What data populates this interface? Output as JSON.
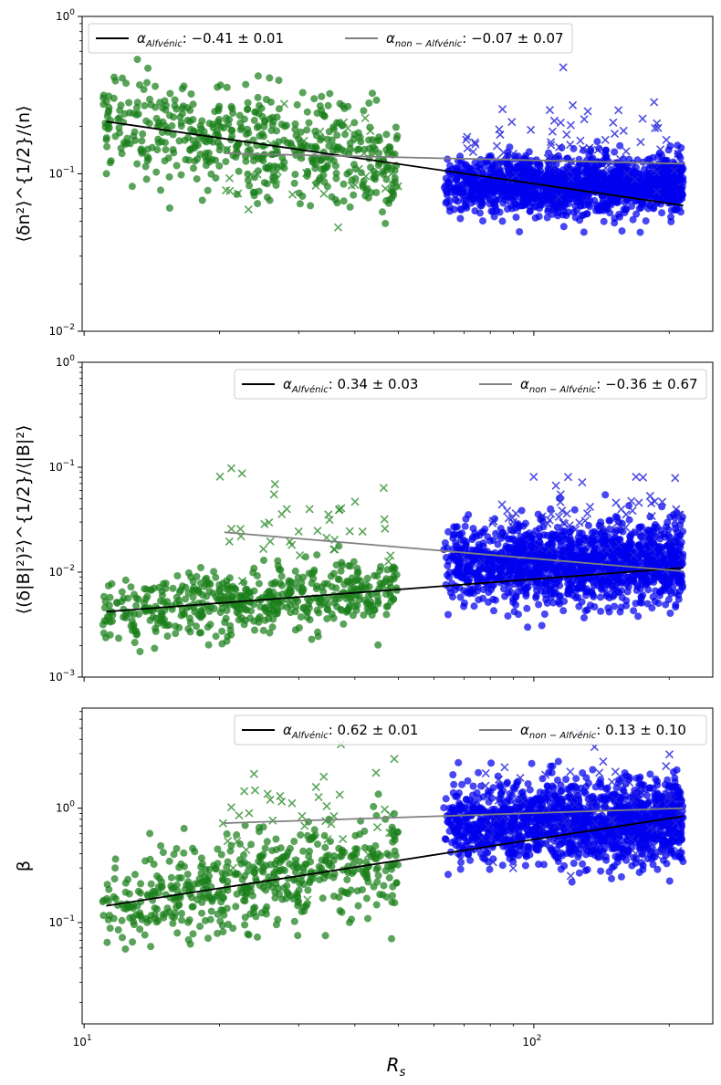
{
  "chart_data": [
    {
      "type": "scatter",
      "panel": "top",
      "ylabel": "⟨δn²⟩^{1/2}/⟨n⟩",
      "xscale": "log",
      "yscale": "log",
      "xlim": [
        9.9,
        250
      ],
      "ylim": [
        0.01,
        1
      ],
      "y_ticks": [
        {
          "value": 0.01,
          "base": "10",
          "exp": "−2"
        },
        {
          "value": 0.1,
          "base": "10",
          "exp": "−1"
        },
        {
          "value": 1,
          "base": "10",
          "exp": "0"
        }
      ],
      "legend_position": "upper-left",
      "fits": [
        {
          "name": "Alfvénic",
          "label_prefix": "α",
          "label_sub": "Alfvénic",
          "label_value": ": −0.41 ± 0.01",
          "slope": -0.41,
          "error": 0.01,
          "color": "#000000",
          "x_range": [
            11.2,
            215
          ],
          "y_at_start": 0.215,
          "y_at_end": 0.063
        },
        {
          "name": "non-Alfvénic",
          "label_prefix": "α",
          "label_sub": "non − Alfvénic",
          "label_value": ": −0.07 ± 0.07",
          "slope": -0.07,
          "error": 0.07,
          "color": "#808080",
          "x_range": [
            20.5,
            215
          ],
          "y_at_start": 0.135,
          "y_at_end": 0.116
        }
      ],
      "series": [
        {
          "name": "near-Sun Alfvénic (green circles)",
          "color": "#1a7f1a",
          "marker": "o",
          "x_range": [
            11,
            50
          ],
          "y_center": 0.2,
          "y_spread": 0.3,
          "count": 520,
          "seed": 11
        },
        {
          "name": "near-Sun non-Alfvénic (green crosses)",
          "color": "#2f8f2f",
          "marker": "x",
          "x_range": [
            20,
            50
          ],
          "y_center": 0.12,
          "y_spread": 0.3,
          "count": 40,
          "seed": 12
        },
        {
          "name": "far Alfvénic (blue circles)",
          "color": "#0000ee",
          "marker": "o",
          "x_range": [
            63,
            215
          ],
          "y_center": 0.085,
          "y_spread": 0.16,
          "count": 1500,
          "seed": 13
        },
        {
          "name": "far non-Alfvénic (blue crosses)",
          "color": "#2222dd",
          "marker": "x",
          "x_range": [
            70,
            215
          ],
          "y_center": 0.16,
          "y_spread": 0.3,
          "count": 70,
          "seed": 14
        }
      ]
    },
    {
      "type": "scatter",
      "panel": "middle",
      "ylabel": "⟨(δ|B|²)²⟩^{1/2}/⟨|B|²⟩",
      "xscale": "log",
      "yscale": "log",
      "xlim": [
        9.9,
        250
      ],
      "ylim": [
        0.001,
        1
      ],
      "y_ticks": [
        {
          "value": 0.001,
          "base": "10",
          "exp": "−3"
        },
        {
          "value": 0.01,
          "base": "10",
          "exp": "−2"
        },
        {
          "value": 0.1,
          "base": "10",
          "exp": "−1"
        },
        {
          "value": 1,
          "base": "10",
          "exp": "0"
        }
      ],
      "legend_position": "upper-right",
      "fits": [
        {
          "name": "Alfvénic",
          "label_prefix": "α",
          "label_sub": "Alfvénic",
          "label_value": ": 0.34 ± 0.03",
          "slope": 0.34,
          "error": 0.03,
          "color": "#000000",
          "x_range": [
            11.2,
            215
          ],
          "y_at_start": 0.0042,
          "y_at_end": 0.011
        },
        {
          "name": "non-Alfvénic",
          "label_prefix": "α",
          "label_sub": "non − Alfvénic",
          "label_value": ": −0.36 ± 0.67",
          "slope": -0.36,
          "error": 0.67,
          "color": "#808080",
          "x_range": [
            20.5,
            215
          ],
          "y_at_start": 0.024,
          "y_at_end": 0.0102
        }
      ],
      "series": [
        {
          "name": "near-Sun Alfvénic (green circles)",
          "color": "#1a7f1a",
          "marker": "o",
          "x_range": [
            11,
            50
          ],
          "y_center": 0.005,
          "y_spread": 0.28,
          "count": 520,
          "seed": 21
        },
        {
          "name": "near-Sun non-Alfvénic (green crosses)",
          "color": "#2f8f2f",
          "marker": "x",
          "x_range": [
            20,
            50
          ],
          "y_center": 0.03,
          "y_spread": 0.45,
          "count": 40,
          "seed": 22
        },
        {
          "name": "far Alfvénic (blue circles)",
          "color": "#0000ee",
          "marker": "o",
          "x_range": [
            63,
            215
          ],
          "y_center": 0.012,
          "y_spread": 0.34,
          "count": 1500,
          "seed": 23
        },
        {
          "name": "far non-Alfvénic (blue crosses)",
          "color": "#2222dd",
          "marker": "x",
          "x_range": [
            70,
            215
          ],
          "y_center": 0.03,
          "y_spread": 0.4,
          "count": 70,
          "seed": 24
        }
      ]
    },
    {
      "type": "scatter",
      "panel": "bottom",
      "ylabel": "β",
      "xlabel": "R_s",
      "xscale": "log",
      "yscale": "log",
      "xlim": [
        9.9,
        250
      ],
      "ylim": [
        0.013,
        7.5
      ],
      "y_ticks": [
        {
          "value": 0.1,
          "base": "10",
          "exp": "−1"
        },
        {
          "value": 1,
          "base": "10",
          "exp": "0"
        }
      ],
      "x_ticks": [
        {
          "value": 10,
          "base": "10",
          "exp": "1"
        },
        {
          "value": 100,
          "base": "10",
          "exp": "2"
        }
      ],
      "legend_position": "upper-right",
      "fits": [
        {
          "name": "Alfvénic",
          "label_prefix": "α",
          "label_sub": "Alfvénic",
          "label_value": ": 0.62 ± 0.01",
          "slope": 0.62,
          "error": 0.01,
          "color": "#000000",
          "x_range": [
            11.2,
            215
          ],
          "y_at_start": 0.14,
          "y_at_end": 0.85
        },
        {
          "name": "non-Alfvénic",
          "label_prefix": "α",
          "label_sub": "non − Alfvénic",
          "label_value": ": 0.13 ± 0.10",
          "slope": 0.13,
          "error": 0.1,
          "color": "#808080",
          "x_range": [
            20.5,
            215
          ],
          "y_at_start": 0.74,
          "y_at_end": 1.0
        }
      ],
      "series": [
        {
          "name": "near-Sun Alfvénic (green circles)",
          "color": "#1a7f1a",
          "marker": "o",
          "x_range": [
            11,
            50
          ],
          "y_center": 0.25,
          "y_spread": 0.38,
          "count": 520,
          "seed": 31
        },
        {
          "name": "near-Sun non-Alfvénic (green crosses)",
          "color": "#2f8f2f",
          "marker": "x",
          "x_range": [
            20,
            50
          ],
          "y_center": 0.8,
          "y_spread": 0.45,
          "count": 40,
          "seed": 32
        },
        {
          "name": "far Alfvénic (blue circles)",
          "color": "#0000ee",
          "marker": "o",
          "x_range": [
            63,
            215
          ],
          "y_center": 0.75,
          "y_spread": 0.32,
          "count": 1500,
          "seed": 33
        },
        {
          "name": "far non-Alfvénic (blue crosses)",
          "color": "#2222dd",
          "marker": "x",
          "x_range": [
            70,
            215
          ],
          "y_center": 0.9,
          "y_spread": 0.5,
          "count": 70,
          "seed": 34
        }
      ]
    }
  ]
}
